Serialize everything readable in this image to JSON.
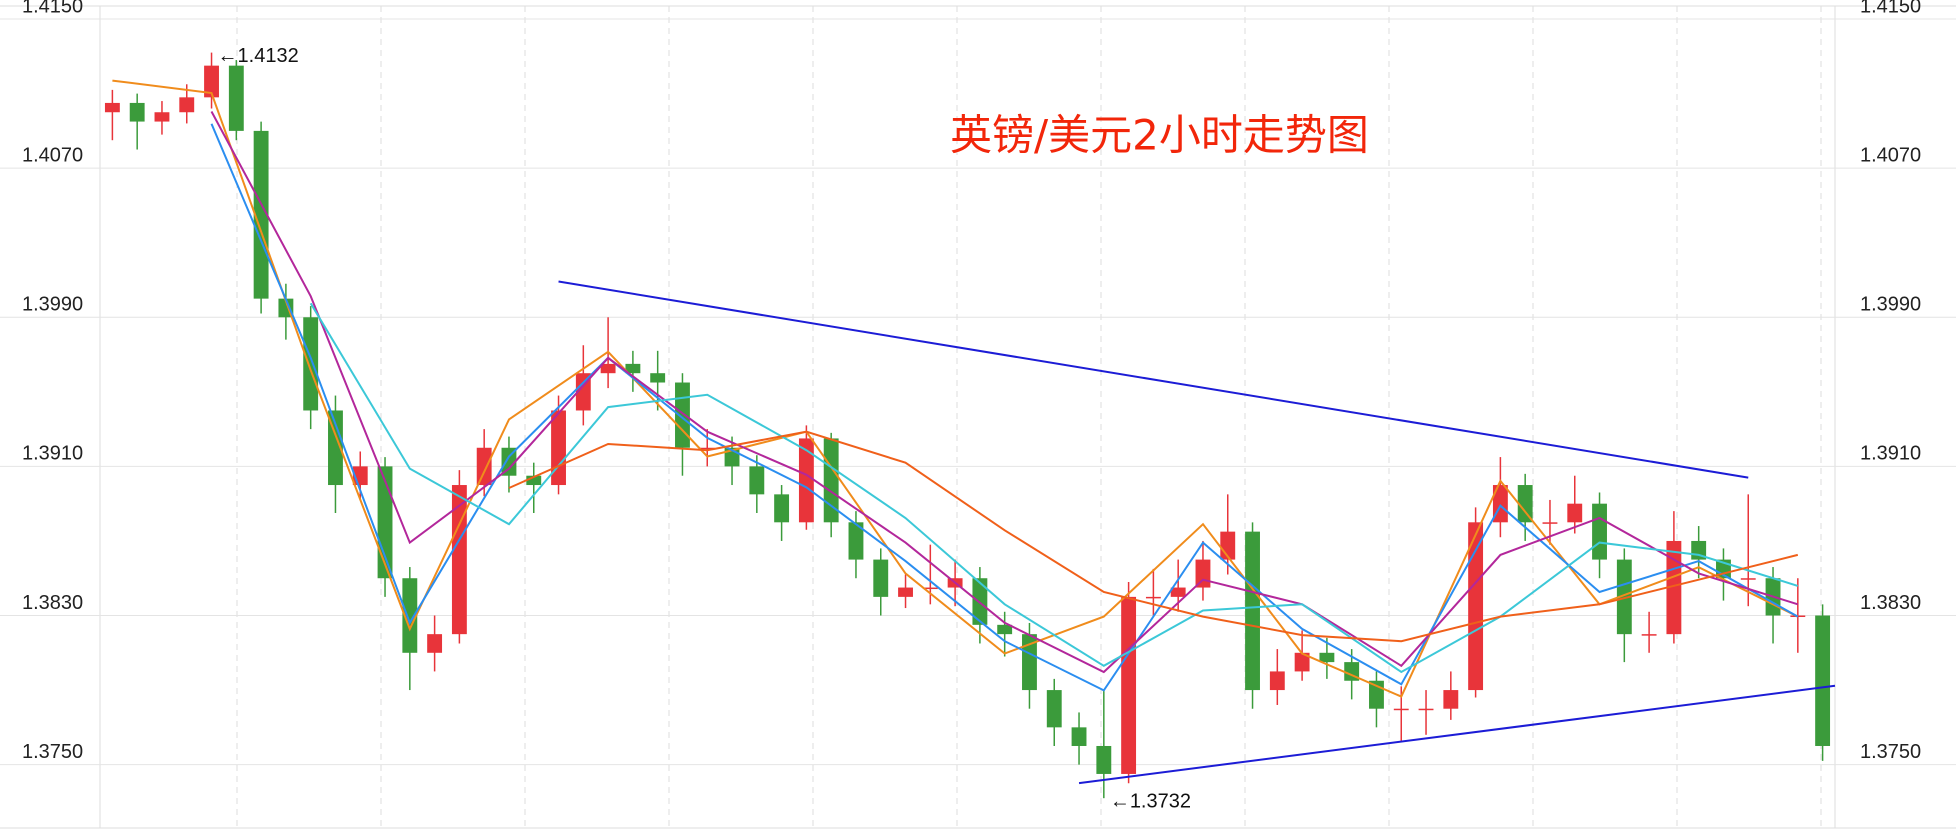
{
  "chart_data": {
    "type": "candlestick",
    "title": "英镑/美元2小时走势图",
    "ylim": [
      1.3716,
      1.4157
    ],
    "yticks": [
      {
        "value": 1.375,
        "label": "1.3750"
      },
      {
        "value": 1.383,
        "label": "1.3830"
      },
      {
        "value": 1.391,
        "label": "1.3910"
      },
      {
        "value": 1.399,
        "label": "1.3990"
      },
      {
        "value": 1.407,
        "label": "1.4070"
      },
      {
        "value": 1.415,
        "label": "1.4150"
      }
    ],
    "grid": true,
    "up_color": "#e8343a",
    "down_color": "#3b9b3b",
    "open": [
      1.41,
      1.4105,
      1.4095,
      1.41,
      1.4108,
      1.4125,
      1.409,
      1.4,
      1.399,
      1.394,
      1.39,
      1.391,
      1.385,
      1.381,
      1.382,
      1.39,
      1.392,
      1.3905,
      1.39,
      1.394,
      1.396,
      1.3965,
      1.396,
      1.3955,
      1.392,
      1.392,
      1.391,
      1.3895,
      1.388,
      1.3925,
      1.388,
      1.386,
      1.384,
      1.3845,
      1.3845,
      1.385,
      1.3825,
      1.382,
      1.379,
      1.377,
      1.376,
      1.3745,
      1.384,
      1.384,
      1.3845,
      1.386,
      1.3875,
      1.379,
      1.38,
      1.381,
      1.3805,
      1.3795,
      1.378,
      1.378,
      1.378,
      1.379,
      1.388,
      1.39,
      1.388,
      1.388,
      1.389,
      1.386,
      1.382,
      1.382,
      1.387,
      1.386,
      1.385,
      1.385,
      1.383,
      1.383
    ],
    "high": [
      1.4112,
      1.411,
      1.4106,
      1.4115,
      1.4132,
      1.4128,
      1.4095,
      1.4008,
      1.3996,
      1.3948,
      1.3918,
      1.3915,
      1.3856,
      1.383,
      1.3908,
      1.393,
      1.3926,
      1.3912,
      1.3948,
      1.3975,
      1.399,
      1.3972,
      1.3972,
      1.396,
      1.393,
      1.3926,
      1.3916,
      1.39,
      1.3932,
      1.3928,
      1.3886,
      1.3866,
      1.3852,
      1.3868,
      1.386,
      1.3856,
      1.3832,
      1.3826,
      1.3796,
      1.3778,
      1.379,
      1.3848,
      1.3855,
      1.386,
      1.387,
      1.3895,
      1.388,
      1.3812,
      1.3822,
      1.3818,
      1.3812,
      1.38,
      1.3792,
      1.379,
      1.38,
      1.3888,
      1.3915,
      1.3906,
      1.3892,
      1.3905,
      1.3896,
      1.3866,
      1.3832,
      1.3886,
      1.3878,
      1.3866,
      1.3895,
      1.3856,
      1.385,
      1.3836
    ],
    "low": [
      1.4085,
      1.408,
      1.4088,
      1.4094,
      1.4102,
      1.4085,
      1.3992,
      1.3978,
      1.393,
      1.3885,
      1.3892,
      1.384,
      1.379,
      1.38,
      1.3815,
      1.3894,
      1.3896,
      1.3885,
      1.3895,
      1.3932,
      1.3952,
      1.395,
      1.394,
      1.3905,
      1.391,
      1.39,
      1.3885,
      1.387,
      1.3876,
      1.3872,
      1.385,
      1.383,
      1.3834,
      1.3836,
      1.3835,
      1.3815,
      1.3808,
      1.378,
      1.376,
      1.375,
      1.3732,
      1.374,
      1.383,
      1.3832,
      1.3838,
      1.3852,
      1.378,
      1.3782,
      1.3795,
      1.3796,
      1.3785,
      1.377,
      1.3762,
      1.3766,
      1.3774,
      1.3786,
      1.3872,
      1.387,
      1.3868,
      1.3874,
      1.385,
      1.3805,
      1.381,
      1.3815,
      1.385,
      1.3838,
      1.3835,
      1.3815,
      1.381,
      1.3752
    ],
    "close": [
      1.4105,
      1.4095,
      1.41,
      1.4108,
      1.4125,
      1.409,
      1.4,
      1.399,
      1.394,
      1.39,
      1.391,
      1.385,
      1.381,
      1.382,
      1.39,
      1.392,
      1.3905,
      1.39,
      1.394,
      1.396,
      1.3965,
      1.396,
      1.3955,
      1.392,
      1.392,
      1.391,
      1.3895,
      1.388,
      1.3925,
      1.388,
      1.386,
      1.384,
      1.3845,
      1.3845,
      1.385,
      1.3825,
      1.382,
      1.379,
      1.377,
      1.376,
      1.3745,
      1.384,
      1.384,
      1.3845,
      1.386,
      1.3875,
      1.379,
      1.38,
      1.381,
      1.3805,
      1.3795,
      1.378,
      1.378,
      1.378,
      1.379,
      1.388,
      1.39,
      1.388,
      1.388,
      1.389,
      1.386,
      1.382,
      1.382,
      1.387,
      1.386,
      1.385,
      1.385,
      1.383,
      1.383,
      1.376
    ],
    "line_x": [
      0,
      4,
      8,
      12,
      16,
      20,
      24,
      28,
      32,
      36,
      40,
      44,
      48,
      52,
      56,
      60,
      64,
      68
    ],
    "series": [
      {
        "color": "#f08c1c",
        "values": [
          1.4117,
          1.41103,
          1.39616,
          1.38228,
          1.39352,
          1.39715,
          1.39153,
          1.39286,
          1.38526,
          1.38096,
          1.38294,
          1.3879,
          1.38096,
          1.37865,
          1.39022,
          1.3836,
          1.38559,
          1.38294
        ]
      },
      {
        "color": "#2b8ef0",
        "values": [
          null,
          1.40938,
          1.39682,
          1.38261,
          1.39153,
          1.39682,
          1.39253,
          1.38988,
          1.38592,
          1.38162,
          1.37898,
          1.38691,
          1.38228,
          1.37931,
          1.38889,
          1.38426,
          1.38592,
          1.38294
        ]
      },
      {
        "color": "#b3279b",
        "values": [
          null,
          1.41004,
          1.40013,
          1.38691,
          1.39088,
          1.39682,
          1.39286,
          1.39055,
          1.38691,
          1.38261,
          1.37997,
          1.38492,
          1.3836,
          1.3803,
          1.38625,
          1.38823,
          1.38526,
          1.3836
        ]
      },
      {
        "color": "#3cc8d8",
        "values": [
          null,
          null,
          1.39975,
          1.39088,
          1.3879,
          1.39418,
          1.39484,
          1.39187,
          1.38823,
          1.3836,
          1.3803,
          1.38327,
          1.3836,
          1.37997,
          1.38294,
          1.38691,
          1.38625,
          1.38459
        ]
      },
      {
        "color": "#f0601a",
        "values": [
          null,
          null,
          null,
          null,
          1.38984,
          1.3922,
          1.39187,
          1.39286,
          1.3912,
          1.38757,
          1.38426,
          1.38294,
          1.38195,
          1.38162,
          1.38294,
          1.3836,
          1.38492,
          1.38625
        ]
      }
    ],
    "trendlines": [
      {
        "color": "#1c1cd6",
        "x": [
          18,
          66
        ],
        "values": [
          1.40092,
          1.3904
        ]
      },
      {
        "color": "#1c1cd6",
        "x": [
          39,
          69.5
        ],
        "values": [
          1.37401,
          1.37923
        ]
      }
    ],
    "annotations": [
      "←1.4132",
      "←1.3732"
    ]
  }
}
